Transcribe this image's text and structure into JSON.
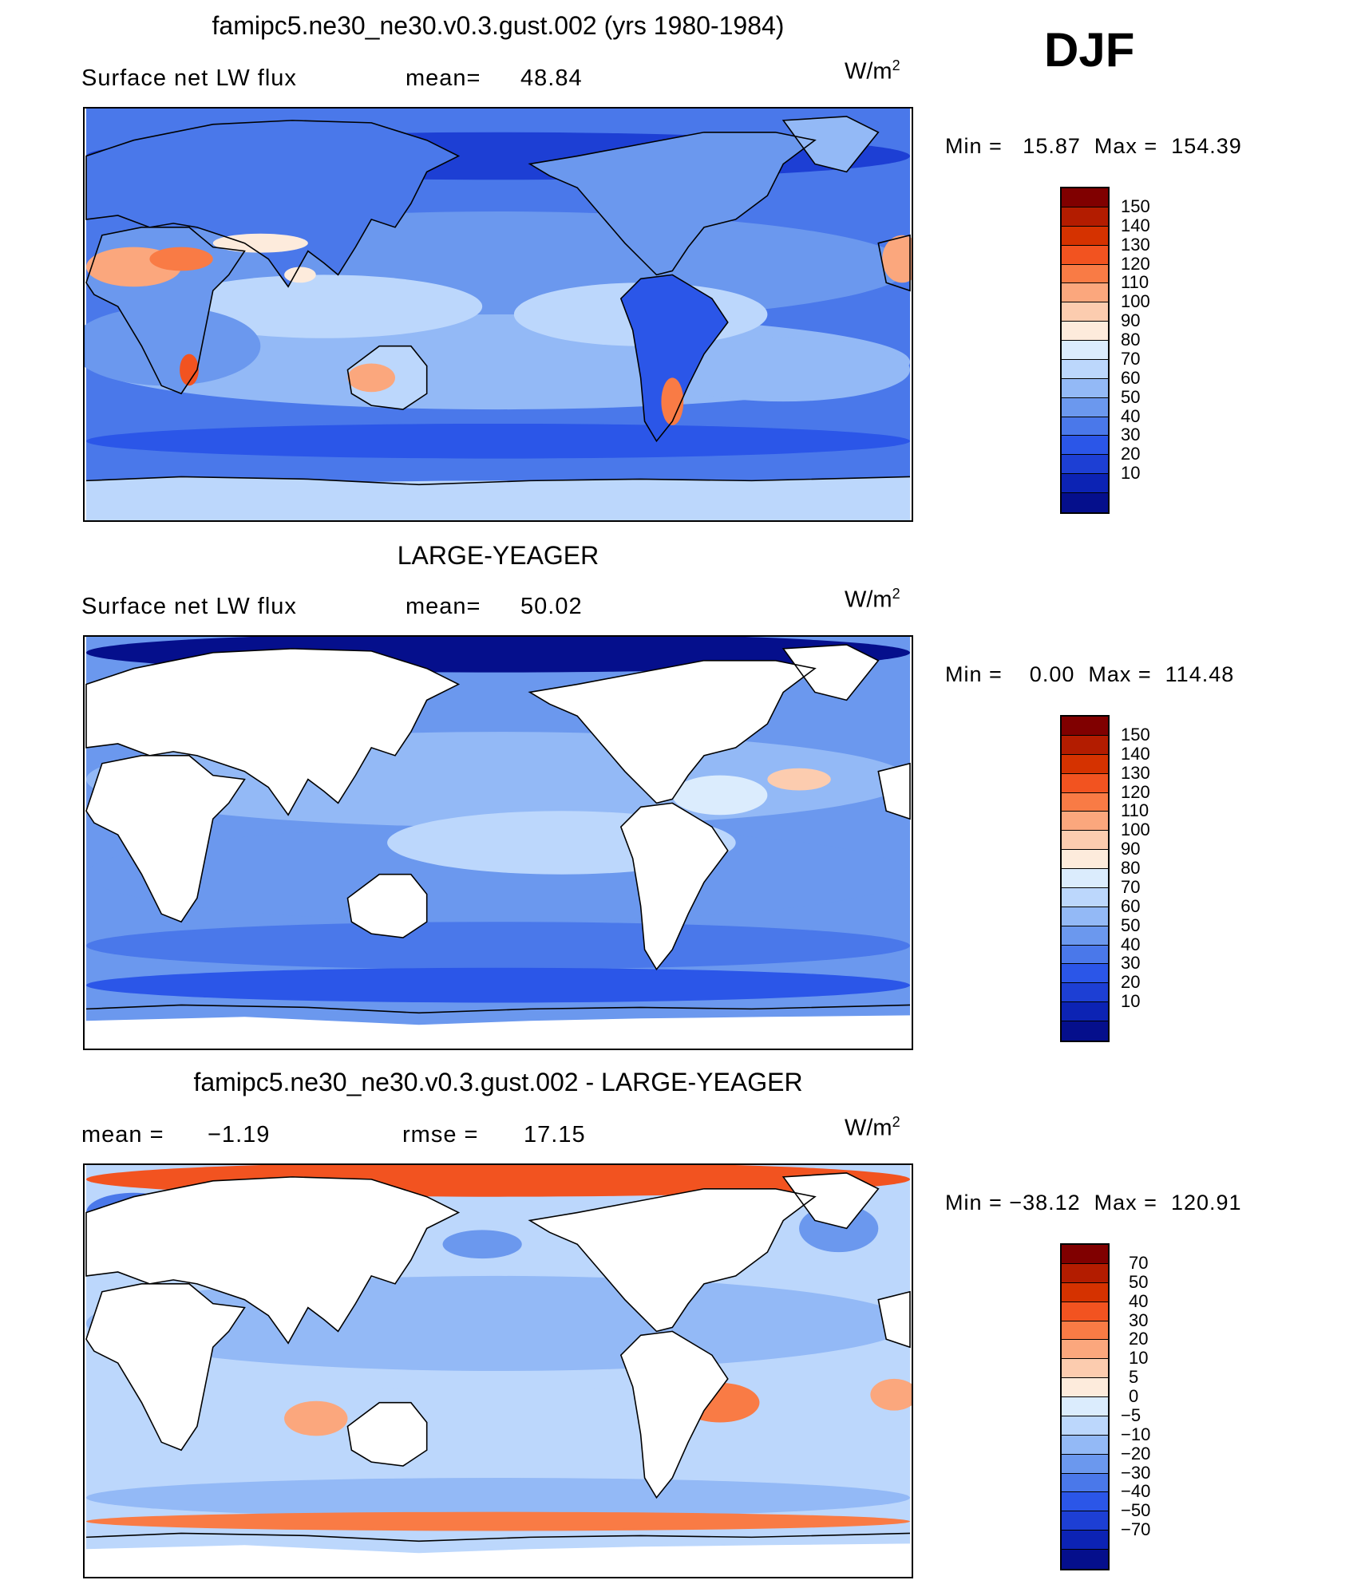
{
  "season": "DJF",
  "colorbars": {
    "abs_colors": [
      "#800000",
      "#b31c00",
      "#d53200",
      "#f25320",
      "#f97b45",
      "#fba77d",
      "#fcccaf",
      "#fdebdc",
      "#dbecfd",
      "#bcd7fc",
      "#93b9f6",
      "#6b98ee",
      "#4a78ea",
      "#2b56e8",
      "#1d3fd4",
      "#0c23b4",
      "#050f8c"
    ],
    "abs_labels": [
      "150",
      "140",
      "130",
      "120",
      "110",
      "100",
      "90",
      "80",
      "70",
      "60",
      "50",
      "40",
      "30",
      "20",
      "10"
    ],
    "diff_labels": [
      "70",
      "50",
      "40",
      "30",
      "20",
      "10",
      "5",
      "0",
      "−5",
      "−10",
      "−20",
      "−30",
      "−40",
      "−50",
      "−70"
    ]
  },
  "panels": [
    {
      "title": "famipc5.ne30_ne30.v0.3.gust.002 (yrs 1980-1984)",
      "left_label": "Surface net LW flux",
      "stat1": "mean=",
      "stat1_value": "48.84",
      "stat2": "",
      "stat2_value": "",
      "units": "W/m",
      "units_sup": "2",
      "min_label": "Min =",
      "min_value": "15.87",
      "max_label": "Max =",
      "max_value": "154.39",
      "field_type": "model"
    },
    {
      "title": "LARGE-YEAGER",
      "left_label": "Surface net LW flux",
      "stat1": "mean=",
      "stat1_value": "50.02",
      "stat2": "",
      "stat2_value": "",
      "units": "W/m",
      "units_sup": "2",
      "min_label": "Min =",
      "min_value": "0.00",
      "max_label": "Max =",
      "max_value": "114.48",
      "field_type": "obs"
    },
    {
      "title": "famipc5.ne30_ne30.v0.3.gust.002 - LARGE-YEAGER",
      "left_label": "mean =",
      "stat1": "",
      "stat1_value": "−1.19",
      "stat2": "rmse =",
      "stat2_value": "17.15",
      "units": "W/m",
      "units_sup": "2",
      "min_label": "Min =",
      "min_value": "−38.12",
      "max_label": "Max =",
      "max_value": "120.91",
      "field_type": "diff"
    }
  ],
  "chart_data": [
    {
      "type": "heatmap",
      "title": "famipc5.ne30_ne30.v0.3.gust.002 (yrs 1980-1984)",
      "variable": "Surface net LW flux",
      "units": "W/m2",
      "mean": 48.84,
      "min": 15.87,
      "max": 154.39,
      "contour_levels": [
        10,
        20,
        30,
        40,
        50,
        60,
        70,
        80,
        90,
        100,
        110,
        120,
        130,
        140,
        150
      ]
    },
    {
      "type": "heatmap",
      "title": "LARGE-YEAGER",
      "variable": "Surface net LW flux",
      "units": "W/m2",
      "mean": 50.02,
      "min": 0.0,
      "max": 114.48,
      "contour_levels": [
        10,
        20,
        30,
        40,
        50,
        60,
        70,
        80,
        90,
        100,
        110,
        120,
        130,
        140,
        150
      ]
    },
    {
      "type": "heatmap",
      "title": "famipc5.ne30_ne30.v0.3.gust.002 - LARGE-YEAGER",
      "units": "W/m2",
      "mean": -1.19,
      "rmse": 17.15,
      "min": -38.12,
      "max": 120.91,
      "contour_levels": [
        -70,
        -50,
        -40,
        -30,
        -20,
        -10,
        -5,
        0,
        5,
        10,
        20,
        30,
        40,
        50,
        70
      ]
    }
  ]
}
